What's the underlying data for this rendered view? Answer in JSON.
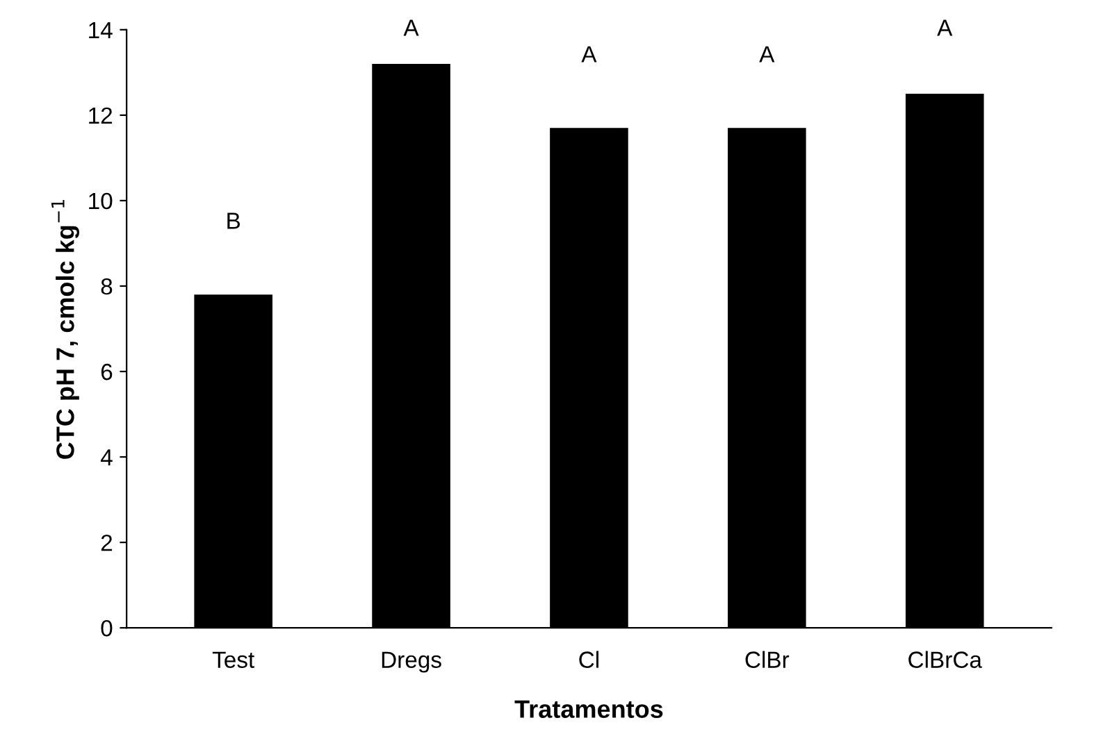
{
  "chart_data": {
    "type": "bar",
    "xlabel": "Tratamentos",
    "ylabel": "CTC pH 7, cmolc kg$^{−1}$",
    "categories": [
      "Test",
      "Dregs",
      "Cl",
      "ClBr",
      "ClBrCa"
    ],
    "values": [
      7.8,
      13.2,
      11.7,
      11.7,
      12.5
    ],
    "color": "#000000",
    "ylim": [
      0,
      14
    ],
    "yticks": [
      0,
      2,
      4,
      6,
      8,
      10,
      12,
      14
    ],
    "grid": false,
    "annotations": [
      "B",
      "A",
      "A",
      "A",
      "A"
    ]
  }
}
